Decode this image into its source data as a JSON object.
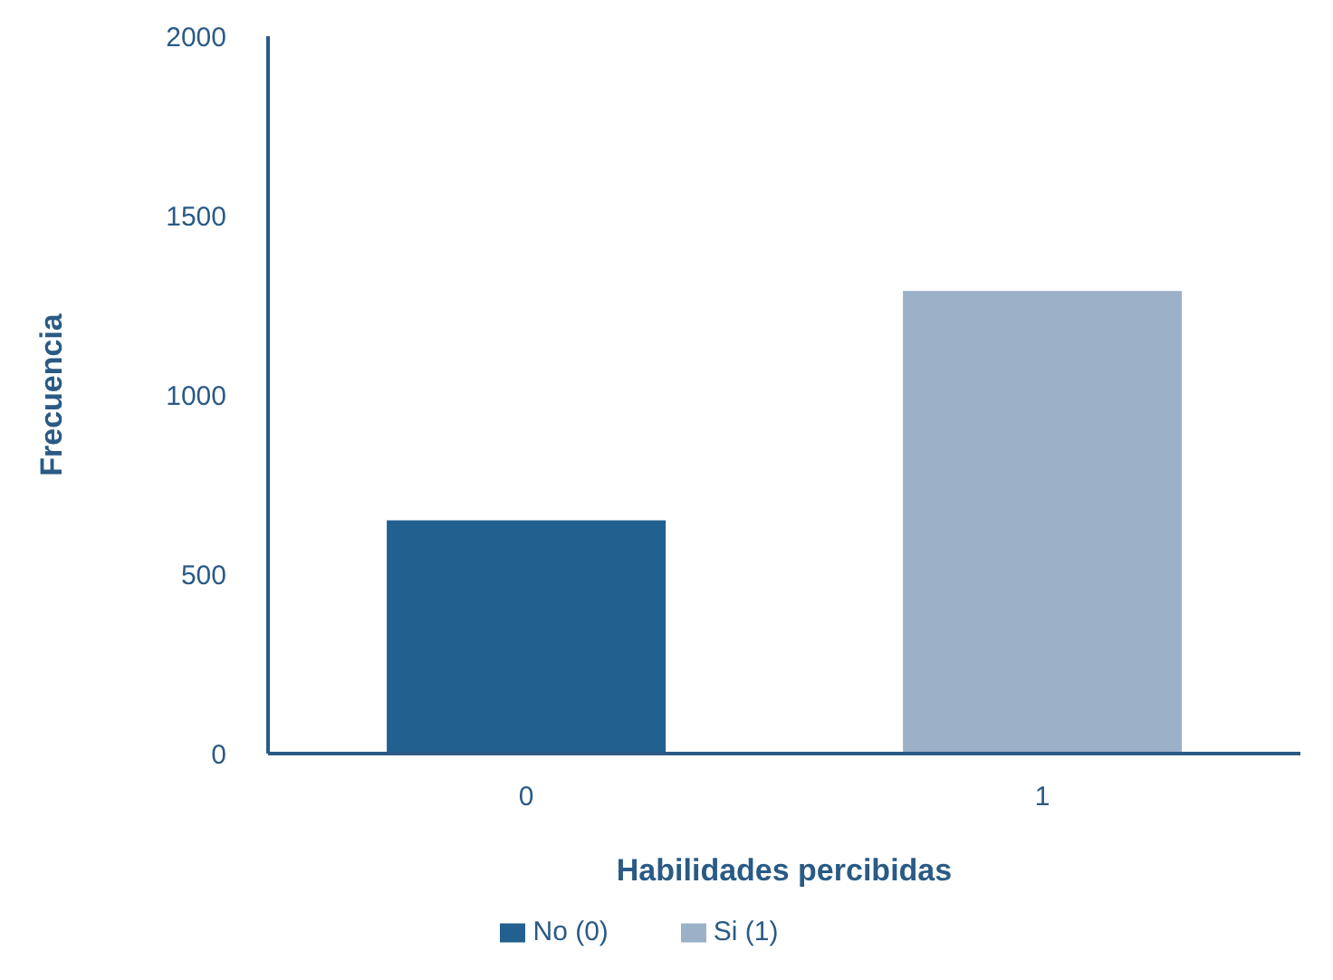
{
  "chart_data": {
    "type": "bar",
    "xlabel": "Habilidades percibidas",
    "ylabel": "Frecuencia",
    "categories": [
      "0",
      "1"
    ],
    "series": [
      {
        "name": "No (0)",
        "color": "#22608f",
        "values": [
          650,
          null
        ]
      },
      {
        "name": "Si (1)",
        "color": "#9bb1c8",
        "values": [
          null,
          1290
        ]
      }
    ],
    "ylim": [
      0,
      2000
    ],
    "yticks": [
      0,
      500,
      1000,
      1500,
      2000
    ],
    "grid": false,
    "legend": "bottom"
  }
}
